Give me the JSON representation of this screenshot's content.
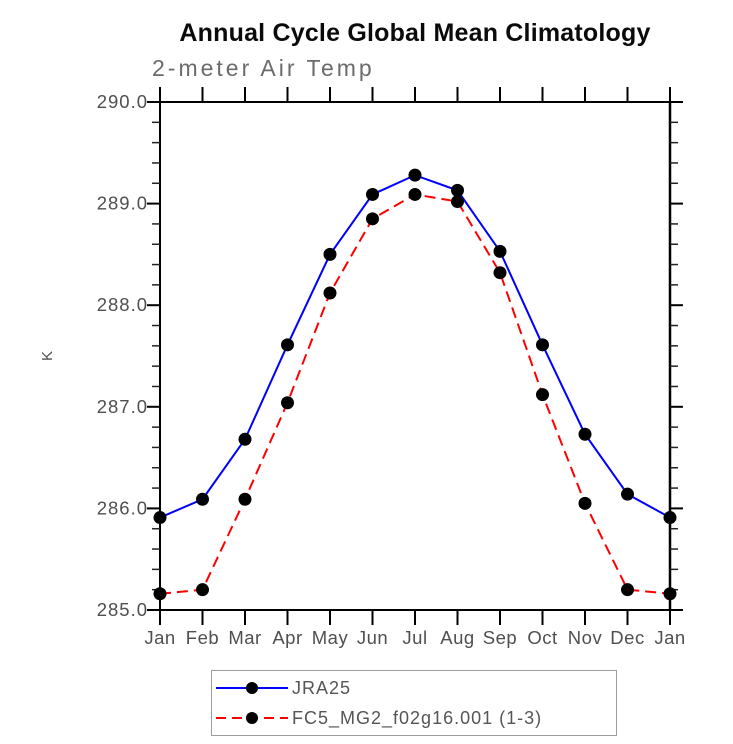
{
  "page": {
    "background": "#ffffff"
  },
  "chart_data": {
    "type": "line",
    "title": "Annual Cycle Global Mean Climatology",
    "subtitle": "2-meter Air Temp",
    "ylabel": "K",
    "xlabel": "",
    "categories": [
      "Jan",
      "Feb",
      "Mar",
      "Apr",
      "May",
      "Jun",
      "Jul",
      "Aug",
      "Sep",
      "Oct",
      "Nov",
      "Dec",
      "Jan"
    ],
    "series": [
      {
        "name": "JRA25",
        "line_color": "#0000ff",
        "line_style": "solid",
        "marker": "filled-circle",
        "marker_color": "#000000",
        "values": [
          285.91,
          286.09,
          286.68,
          287.61,
          288.5,
          289.09,
          289.28,
          289.13,
          288.53,
          287.61,
          286.73,
          286.14,
          285.91
        ]
      },
      {
        "name": "FC5_MG2_f02g16.001 (1-3)",
        "line_color": "#ff0000",
        "line_style": "dashed",
        "marker": "filled-circle",
        "marker_color": "#000000",
        "values": [
          285.16,
          285.2,
          286.09,
          287.04,
          288.12,
          288.85,
          289.09,
          289.02,
          288.32,
          287.12,
          286.05,
          285.2,
          285.16
        ]
      }
    ],
    "ylim": [
      285.0,
      290.0
    ],
    "ytick_labels": [
      "285.0",
      "286.0",
      "287.0",
      "288.0",
      "289.0",
      "290.0"
    ],
    "y_minor_tick_step": 0.2,
    "grid": false,
    "legend_position": "bottom-center",
    "axis_box": true
  },
  "colors": {
    "series1_line": "#0000ff",
    "series2_line": "#ff0000",
    "marker": "#000000",
    "axis": "#000000",
    "tick_labels": "#4f4f4f",
    "subtitle": "#6b6b6b",
    "legend_border": "#9c9c9c",
    "title": "#0a0a0a"
  }
}
